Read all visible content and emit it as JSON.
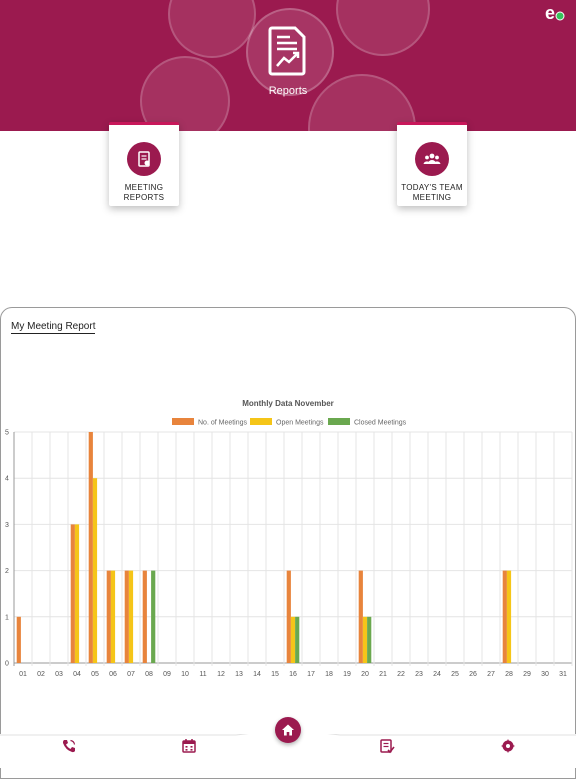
{
  "header": {
    "title": "Reports"
  },
  "cards": [
    {
      "label": "MEETING REPORTS",
      "icon": "document-report-icon"
    },
    {
      "label": "TODAY'S TEAM MEETING",
      "icon": "team-icon"
    }
  ],
  "report": {
    "title": "My Meeting Report"
  },
  "colors": {
    "brand": "#9b1a4f",
    "no_of_meetings": "#e8843c",
    "open_meetings": "#f5c518",
    "closed_meetings": "#6aa84f"
  },
  "bottom_nav": [
    {
      "icon": "phone-call-icon"
    },
    {
      "icon": "calendar-icon"
    },
    {
      "icon": "home-icon"
    },
    {
      "icon": "checklist-icon"
    },
    {
      "icon": "settings-icon"
    }
  ],
  "chart_data": {
    "type": "bar",
    "title": "Monthly Data November",
    "xlabel": "",
    "ylabel": "",
    "ylim": [
      0,
      5
    ],
    "yticks": [
      "0",
      "1",
      "2",
      "3",
      "4",
      "5"
    ],
    "grid": true,
    "legend_position": "top",
    "categories": [
      "01",
      "02",
      "03",
      "04",
      "05",
      "06",
      "07",
      "08",
      "09",
      "10",
      "11",
      "12",
      "13",
      "14",
      "15",
      "16",
      "17",
      "18",
      "19",
      "20",
      "21",
      "22",
      "23",
      "24",
      "25",
      "26",
      "27",
      "28",
      "29",
      "30",
      "31"
    ],
    "series": [
      {
        "name": "No. of Meetings",
        "color": "#e8843c",
        "values": [
          1,
          0,
          0,
          3,
          5,
          2,
          2,
          2,
          0,
          0,
          0,
          0,
          0,
          0,
          0,
          2,
          0,
          0,
          0,
          2,
          0,
          0,
          0,
          0,
          0,
          0,
          0,
          2,
          0,
          0,
          0
        ]
      },
      {
        "name": "Open Meetings",
        "color": "#f5c518",
        "values": [
          0,
          0,
          0,
          3,
          4,
          2,
          2,
          0,
          0,
          0,
          0,
          0,
          0,
          0,
          0,
          1,
          0,
          0,
          0,
          1,
          0,
          0,
          0,
          0,
          0,
          0,
          0,
          2,
          0,
          0,
          0
        ]
      },
      {
        "name": "Closed Meetings",
        "color": "#6aa84f",
        "values": [
          0,
          0,
          0,
          0,
          0,
          0,
          0,
          2,
          0,
          0,
          0,
          0,
          0,
          0,
          0,
          1,
          0,
          0,
          0,
          1,
          0,
          0,
          0,
          0,
          0,
          0,
          0,
          0,
          0,
          0,
          0
        ]
      }
    ]
  }
}
